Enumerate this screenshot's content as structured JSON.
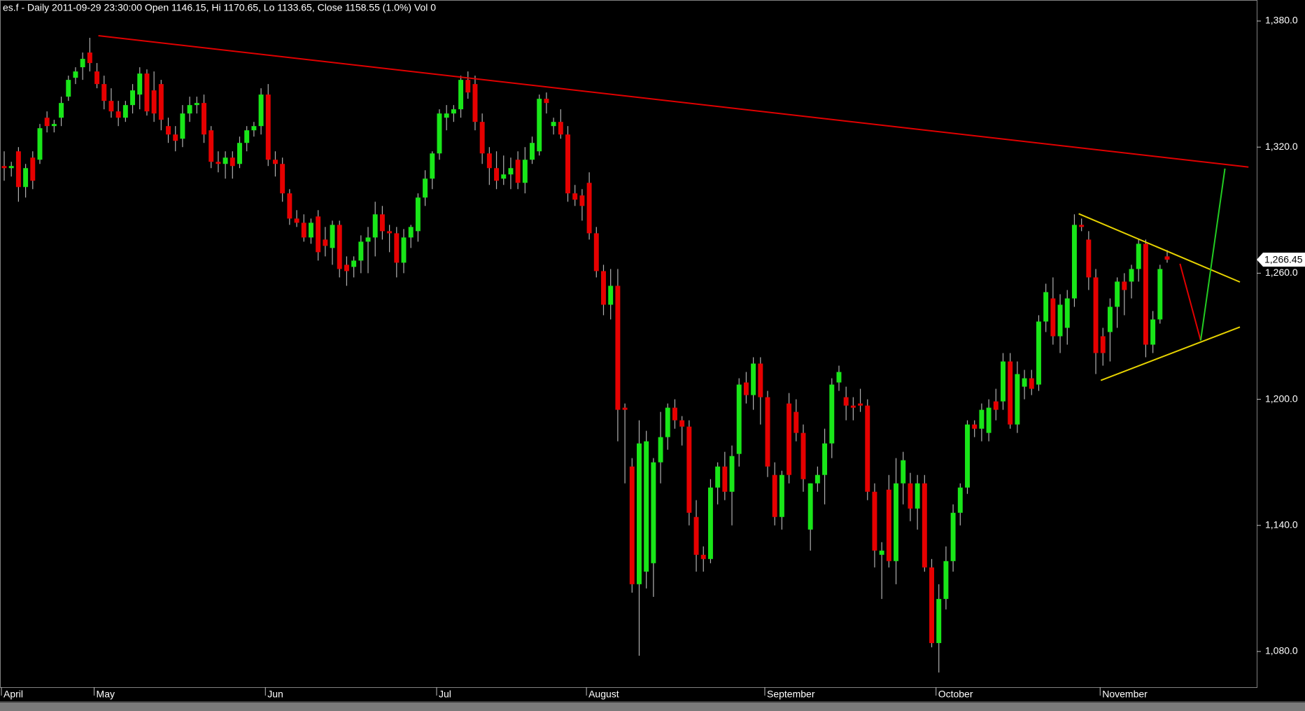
{
  "chart_data": {
    "type": "candlestick",
    "title": "es.f - Daily 2011-09-29 23:30:00 Open 1146.15, Hi 1170.65, Lo 1133.65, Close 1158.55 (1.0%) Vol 0",
    "categories": [
      "April",
      null,
      null,
      null,
      null,
      null,
      null,
      null,
      null,
      null,
      null,
      null,
      null,
      "May",
      null,
      null,
      null,
      null,
      null,
      null,
      null,
      null,
      null,
      null,
      null,
      null,
      null,
      null,
      null,
      null,
      null,
      null,
      null,
      null,
      null,
      null,
      null,
      "Jun",
      null,
      null,
      null,
      null,
      null,
      null,
      null,
      null,
      null,
      null,
      null,
      null,
      null,
      null,
      null,
      null,
      null,
      null,
      null,
      null,
      null,
      null,
      null,
      "Jul",
      null,
      null,
      null,
      null,
      null,
      null,
      null,
      null,
      null,
      null,
      null,
      null,
      null,
      null,
      null,
      null,
      null,
      null,
      null,
      null,
      "August",
      null,
      null,
      null,
      null,
      null,
      null,
      null,
      null,
      null,
      null,
      null,
      null,
      null,
      null,
      null,
      null,
      null,
      null,
      null,
      null,
      null,
      null,
      null,
      null,
      "September",
      null,
      null,
      null,
      null,
      null,
      null,
      null,
      null,
      null,
      null,
      null,
      null,
      null,
      null,
      null,
      null,
      null,
      null,
      null,
      null,
      null,
      null,
      null,
      "October",
      null,
      null,
      null,
      null,
      null,
      null,
      null,
      null,
      null,
      null,
      null,
      null,
      null,
      null,
      null,
      null,
      null,
      null,
      null,
      null,
      null,
      null,
      "November",
      null,
      null,
      null,
      null,
      null,
      null,
      null,
      null,
      null
    ],
    "ohlc": [
      [
        1311,
        1318,
        1304,
        1310
      ],
      [
        1310,
        1313,
        1306,
        1311
      ],
      [
        1318,
        1320,
        1294,
        1301
      ],
      [
        1301,
        1312,
        1296,
        1310
      ],
      [
        1315,
        1318,
        1300,
        1304
      ],
      [
        1314,
        1331,
        1312,
        1329
      ],
      [
        1334,
        1337,
        1327,
        1330
      ],
      [
        1330,
        1333,
        1327,
        1331
      ],
      [
        1334,
        1344,
        1330,
        1341
      ],
      [
        1344,
        1354,
        1342,
        1352
      ],
      [
        1353,
        1358,
        1350,
        1356
      ],
      [
        1358,
        1365,
        1352,
        1362
      ],
      [
        1365,
        1372,
        1356,
        1360
      ],
      [
        1356,
        1360,
        1348,
        1350
      ],
      [
        1350,
        1354,
        1338,
        1342
      ],
      [
        1342,
        1348,
        1334,
        1337
      ],
      [
        1337,
        1342,
        1330,
        1334
      ],
      [
        1334,
        1342,
        1332,
        1340
      ],
      [
        1340,
        1350,
        1336,
        1347
      ],
      [
        1345,
        1358,
        1338,
        1355
      ],
      [
        1355,
        1357,
        1335,
        1337
      ],
      [
        1347,
        1356,
        1332,
        1336
      ],
      [
        1350,
        1352,
        1328,
        1333
      ],
      [
        1330,
        1334,
        1322,
        1326
      ],
      [
        1326,
        1330,
        1318,
        1323
      ],
      [
        1324,
        1340,
        1320,
        1336
      ],
      [
        1336,
        1344,
        1332,
        1340
      ],
      [
        1340,
        1344,
        1336,
        1341
      ],
      [
        1341,
        1345,
        1322,
        1326
      ],
      [
        1328,
        1330,
        1310,
        1313
      ],
      [
        1313,
        1318,
        1308,
        1312
      ],
      [
        1312,
        1318,
        1305,
        1315
      ],
      [
        1315,
        1318,
        1305,
        1311
      ],
      [
        1312,
        1325,
        1310,
        1322
      ],
      [
        1322,
        1330,
        1318,
        1328
      ],
      [
        1328,
        1332,
        1325,
        1330
      ],
      [
        1330,
        1348,
        1326,
        1345
      ],
      [
        1345,
        1350,
        1311,
        1314
      ],
      [
        1314,
        1318,
        1306,
        1312
      ],
      [
        1312,
        1315,
        1294,
        1298
      ],
      [
        1298,
        1300,
        1283,
        1286
      ],
      [
        1286,
        1290,
        1282,
        1284
      ],
      [
        1284,
        1288,
        1275,
        1277
      ],
      [
        1277,
        1286,
        1274,
        1284
      ],
      [
        1287,
        1290,
        1266,
        1270
      ],
      [
        1276,
        1282,
        1268,
        1273
      ],
      [
        1272,
        1285,
        1264,
        1283
      ],
      [
        1283,
        1285,
        1258,
        1262
      ],
      [
        1264,
        1268,
        1254,
        1261
      ],
      [
        1263,
        1268,
        1258,
        1266
      ],
      [
        1266,
        1278,
        1260,
        1275
      ],
      [
        1275,
        1282,
        1260,
        1277
      ],
      [
        1277,
        1294,
        1268,
        1288
      ],
      [
        1288,
        1292,
        1276,
        1280
      ],
      [
        1280,
        1283,
        1270,
        1279
      ],
      [
        1279,
        1282,
        1258,
        1265
      ],
      [
        1265,
        1281,
        1260,
        1277
      ],
      [
        1277,
        1283,
        1272,
        1282
      ],
      [
        1280,
        1298,
        1275,
        1296
      ],
      [
        1296,
        1309,
        1292,
        1305
      ],
      [
        1305,
        1318,
        1300,
        1317
      ],
      [
        1317,
        1338,
        1314,
        1336
      ],
      [
        1334,
        1340,
        1328,
        1336
      ],
      [
        1336,
        1340,
        1332,
        1338
      ],
      [
        1338,
        1354,
        1334,
        1352
      ],
      [
        1352,
        1356,
        1343,
        1346
      ],
      [
        1350,
        1354,
        1328,
        1332
      ],
      [
        1332,
        1336,
        1312,
        1317
      ],
      [
        1317,
        1320,
        1302,
        1310
      ],
      [
        1310,
        1318,
        1300,
        1304
      ],
      [
        1305,
        1316,
        1302,
        1307
      ],
      [
        1307,
        1315,
        1300,
        1310
      ],
      [
        1314,
        1318,
        1300,
        1303
      ],
      [
        1303,
        1320,
        1298,
        1314
      ],
      [
        1314,
        1325,
        1312,
        1322
      ],
      [
        1318,
        1345,
        1316,
        1343
      ],
      [
        1343,
        1346,
        1336,
        1341
      ],
      [
        1330,
        1334,
        1326,
        1332
      ],
      [
        1332,
        1338,
        1324,
        1326
      ],
      [
        1326,
        1330,
        1294,
        1298
      ],
      [
        1298,
        1302,
        1292,
        1295
      ],
      [
        1297,
        1300,
        1285,
        1292
      ],
      [
        1303,
        1308,
        1276,
        1279
      ],
      [
        1279,
        1282,
        1258,
        1261
      ],
      [
        1261,
        1264,
        1240,
        1245
      ],
      [
        1245,
        1262,
        1238,
        1254
      ],
      [
        1254,
        1262,
        1180,
        1195
      ],
      [
        1196,
        1198,
        1160,
        1195
      ],
      [
        1168,
        1172,
        1108,
        1112
      ],
      [
        1112,
        1190,
        1078,
        1179
      ],
      [
        1118,
        1185,
        1110,
        1180
      ],
      [
        1122,
        1172,
        1106,
        1170
      ],
      [
        1170,
        1194,
        1160,
        1182
      ],
      [
        1182,
        1198,
        1176,
        1196
      ],
      [
        1196,
        1200,
        1186,
        1190
      ],
      [
        1190,
        1192,
        1178,
        1187
      ],
      [
        1187,
        1190,
        1140,
        1146
      ],
      [
        1144,
        1152,
        1118,
        1126
      ],
      [
        1126,
        1130,
        1118,
        1124
      ],
      [
        1124,
        1162,
        1122,
        1158
      ],
      [
        1158,
        1170,
        1150,
        1168
      ],
      [
        1168,
        1175,
        1152,
        1156
      ],
      [
        1156,
        1178,
        1140,
        1173
      ],
      [
        1174,
        1210,
        1168,
        1207
      ],
      [
        1208,
        1213,
        1198,
        1202
      ],
      [
        1202,
        1220,
        1195,
        1217
      ],
      [
        1217,
        1220,
        1188,
        1201
      ],
      [
        1201,
        1204,
        1163,
        1168
      ],
      [
        1164,
        1170,
        1140,
        1144
      ],
      [
        1144,
        1166,
        1138,
        1164
      ],
      [
        1198,
        1203,
        1160,
        1164
      ],
      [
        1194,
        1200,
        1180,
        1184
      ],
      [
        1184,
        1188,
        1156,
        1162
      ],
      [
        1138,
        1160,
        1128,
        1160
      ],
      [
        1160,
        1168,
        1156,
        1164
      ],
      [
        1164,
        1186,
        1150,
        1179
      ],
      [
        1179,
        1210,
        1172,
        1207
      ],
      [
        1208,
        1216,
        1204,
        1213
      ],
      [
        1201,
        1206,
        1190,
        1197
      ],
      [
        1197,
        1201,
        1190,
        1196
      ],
      [
        1198,
        1205,
        1194,
        1197
      ],
      [
        1197,
        1200,
        1152,
        1156
      ],
      [
        1156,
        1160,
        1120,
        1128
      ],
      [
        1126,
        1132,
        1105,
        1128
      ],
      [
        1157,
        1164,
        1120,
        1123
      ],
      [
        1123,
        1172,
        1112,
        1160
      ],
      [
        1160,
        1175,
        1150,
        1171
      ],
      [
        1160,
        1165,
        1142,
        1148
      ],
      [
        1148,
        1164,
        1138,
        1160
      ],
      [
        1160,
        1164,
        1118,
        1120
      ],
      [
        1120,
        1124,
        1082,
        1084
      ],
      [
        1084,
        1112,
        1070,
        1105
      ],
      [
        1105,
        1130,
        1100,
        1123
      ],
      [
        1123,
        1150,
        1118,
        1146
      ],
      [
        1146,
        1160,
        1140,
        1158
      ],
      [
        1158,
        1190,
        1155,
        1188
      ],
      [
        1188,
        1190,
        1182,
        1186
      ],
      [
        1186,
        1198,
        1180,
        1195
      ],
      [
        1184,
        1200,
        1180,
        1196
      ],
      [
        1199,
        1205,
        1190,
        1195
      ],
      [
        1199,
        1222,
        1195,
        1218
      ],
      [
        1218,
        1222,
        1186,
        1188
      ],
      [
        1188,
        1218,
        1184,
        1212
      ],
      [
        1206,
        1214,
        1200,
        1210
      ],
      [
        1210,
        1214,
        1202,
        1205
      ],
      [
        1207,
        1240,
        1204,
        1237
      ],
      [
        1237,
        1255,
        1232,
        1251
      ],
      [
        1248,
        1258,
        1226,
        1230
      ],
      [
        1230,
        1250,
        1222,
        1245
      ],
      [
        1234,
        1252,
        1226,
        1248
      ],
      [
        1248,
        1288,
        1244,
        1283
      ],
      [
        1283,
        1286,
        1280,
        1282
      ],
      [
        1276,
        1280,
        1252,
        1258
      ],
      [
        1258,
        1262,
        1212,
        1222
      ],
      [
        1230,
        1234,
        1216,
        1222
      ],
      [
        1232,
        1248,
        1218,
        1244
      ],
      [
        1244,
        1258,
        1234,
        1256
      ],
      [
        1256,
        1260,
        1240,
        1252
      ],
      [
        1256,
        1264,
        1248,
        1262
      ],
      [
        1262,
        1276,
        1256,
        1274
      ],
      [
        1274,
        1276,
        1220,
        1226
      ],
      [
        1226,
        1242,
        1222,
        1238
      ],
      [
        1238,
        1264,
        1236,
        1262
      ],
      [
        1268,
        1271,
        1265,
        1266.45
      ]
    ],
    "up_color": "#19e619",
    "down_color": "#e60000",
    "wick_color": "#b0b0b0",
    "ylim": [
      1063,
      1390
    ],
    "yticks": [
      {
        "value": 1380,
        "label": "1,380.0"
      },
      {
        "value": 1320,
        "label": "1,320.0"
      },
      {
        "value": 1260,
        "label": "1,260.0"
      },
      {
        "value": 1200,
        "label": "1,200.0"
      },
      {
        "value": 1140,
        "label": "1,140.0"
      },
      {
        "value": 1080,
        "label": "1,080.0"
      }
    ],
    "last_price": {
      "value": 1266.45,
      "label": "1,266.45"
    },
    "trendlines": [
      {
        "color": "#e00000",
        "points": [
          [
            13.2,
            1373
          ],
          [
            174.4,
            1310.5
          ]
        ]
      },
      {
        "color": "#e6d200",
        "points": [
          [
            150.6,
            1288.3
          ],
          [
            173.2,
            1255.8
          ]
        ]
      },
      {
        "color": "#e6d200",
        "points": [
          [
            153.7,
            1209
          ],
          [
            173.2,
            1234.4
          ]
        ]
      },
      {
        "color": "#e00000",
        "points": [
          [
            164.8,
            1264.5
          ],
          [
            167.7,
            1228
          ]
        ]
      },
      {
        "color": "#22cc22",
        "points": [
          [
            167.7,
            1228
          ],
          [
            171.1,
            1309.8
          ]
        ]
      }
    ]
  }
}
